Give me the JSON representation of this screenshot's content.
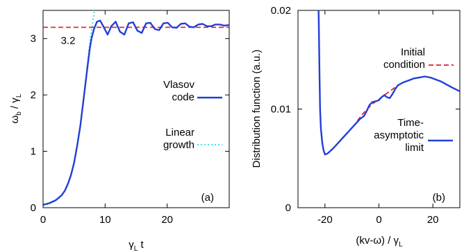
{
  "chart_data": [
    {
      "type": "line",
      "panel_label": "(a)",
      "ylabel_parts": {
        "base": "ω",
        "sub": "b",
        "mid": " / γ",
        "sub2": "L"
      },
      "xlabel_parts": {
        "base": "γ",
        "sub": "L",
        "tail": " t"
      },
      "xlim": [
        0,
        30
      ],
      "ylim": [
        0,
        3.5
      ],
      "xticks": [
        0,
        10,
        20
      ],
      "yticks": [
        0,
        1,
        2,
        3
      ],
      "grid": false,
      "legend_placement": "right",
      "hline": {
        "y": 3.2,
        "label": "3.2",
        "color": "#e41a1c"
      },
      "series": [
        {
          "name_lines": [
            "Vlasov",
            "code"
          ],
          "color": "#1f3fd6",
          "style": "solid",
          "x": [
            0,
            1,
            2,
            3,
            3.5,
            4,
            4.5,
            5,
            5.5,
            6,
            6.5,
            7,
            7.5,
            7.8,
            8.2,
            8.7,
            9.2,
            9.8,
            10.4,
            11,
            11.7,
            12.4,
            13.1,
            13.8,
            14.5,
            15.2,
            15.9,
            16.6,
            17.3,
            18,
            18.7,
            19.4,
            20.1,
            20.8,
            21.5,
            22.2,
            22.9,
            23.6,
            24.3,
            25,
            25.7,
            26.4,
            27.1,
            27.8,
            28.5,
            29.2,
            30
          ],
          "y": [
            0.05,
            0.08,
            0.13,
            0.22,
            0.3,
            0.42,
            0.58,
            0.8,
            1.1,
            1.45,
            1.9,
            2.35,
            2.8,
            3.0,
            3.17,
            3.3,
            3.32,
            3.2,
            3.07,
            3.22,
            3.3,
            3.12,
            3.07,
            3.27,
            3.29,
            3.14,
            3.1,
            3.27,
            3.28,
            3.17,
            3.15,
            3.27,
            3.28,
            3.2,
            3.19,
            3.26,
            3.27,
            3.21,
            3.2,
            3.25,
            3.26,
            3.22,
            3.22,
            3.25,
            3.25,
            3.23,
            3.24
          ]
        },
        {
          "name_lines": [
            "Linear",
            "growth"
          ],
          "color": "#22e0e6",
          "style": "dotted",
          "x": [
            0,
            1,
            2,
            3,
            4,
            5,
            5.5,
            6,
            6.5,
            7,
            7.5,
            8,
            8.3
          ],
          "y": [
            0.04,
            0.07,
            0.12,
            0.21,
            0.4,
            0.78,
            1.08,
            1.44,
            1.9,
            2.4,
            2.9,
            3.3,
            3.5
          ]
        }
      ]
    },
    {
      "type": "line",
      "panel_label": "(b)",
      "ylabel": "Distribution function (a.u.)",
      "xlabel_parts": {
        "base": "(kv-ω) / γ",
        "sub": "L"
      },
      "xlim": [
        -30,
        30
      ],
      "ylim": [
        0,
        0.02
      ],
      "xticks": [
        -20,
        0,
        20
      ],
      "ytick_labels": [
        "0",
        "0.01",
        "0.02"
      ],
      "yticks": [
        0,
        0.01,
        0.02
      ],
      "grid": false,
      "legend_placement": "right",
      "series": [
        {
          "name_lines": [
            "Initial",
            "condition"
          ],
          "color": "#e41a1c",
          "style": "dashed",
          "x": [
            -8,
            -6,
            -4,
            -2,
            0,
            2,
            4,
            6
          ],
          "y": [
            0.0088,
            0.0095,
            0.0101,
            0.0106,
            0.011,
            0.0114,
            0.0118,
            0.0122
          ]
        },
        {
          "name_lines": [
            "Time-",
            "asymptotic",
            "limit"
          ],
          "color": "#1f3fd6",
          "style": "solid",
          "x": [
            -22.4,
            -22.3,
            -22.2,
            -22.1,
            -22,
            -21.8,
            -21.5,
            -21,
            -20.5,
            -20,
            -19,
            -17,
            -15,
            -13,
            -11,
            -9,
            -7,
            -5.5,
            -4.5,
            -3.5,
            -2.5,
            -1,
            0,
            1,
            2,
            3,
            4,
            5,
            6,
            7,
            9,
            11,
            13,
            15,
            17,
            19,
            21,
            23,
            25,
            27,
            30
          ],
          "y": [
            0.0205,
            0.019,
            0.017,
            0.015,
            0.013,
            0.01,
            0.008,
            0.0066,
            0.0058,
            0.0054,
            0.0055,
            0.006,
            0.0066,
            0.0072,
            0.0078,
            0.0084,
            0.009,
            0.0093,
            0.0098,
            0.0104,
            0.0107,
            0.0108,
            0.0109,
            0.0112,
            0.0114,
            0.0112,
            0.0111,
            0.0115,
            0.012,
            0.0124,
            0.0127,
            0.0129,
            0.0131,
            0.0132,
            0.0133,
            0.0132,
            0.013,
            0.0128,
            0.0125,
            0.0122,
            0.0118
          ]
        }
      ]
    }
  ]
}
